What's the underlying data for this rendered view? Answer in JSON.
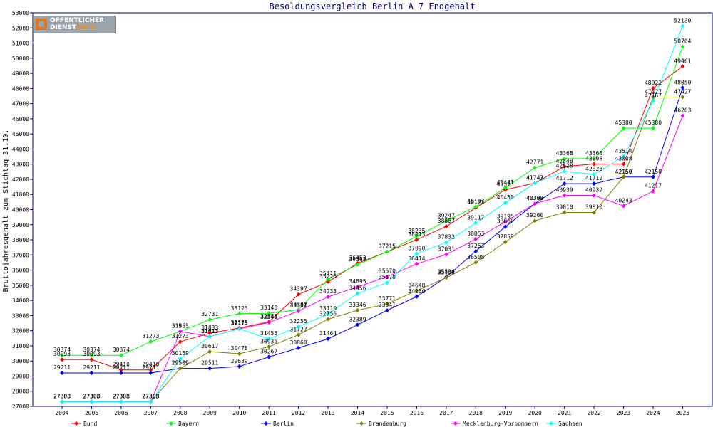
{
  "logo": {
    "line1": "OFFENTLICHER",
    "line2_main": "DIENST",
    "line2_accent": ".INFO"
  },
  "chart_data": {
    "type": "line",
    "title": "Besoldungsvergleich Berlin A 7 Endgehalt",
    "xlabel": "",
    "ylabel": "Bruttojahresgehalt zum Stichtag 31.10.",
    "categories": [
      "2004",
      "2005",
      "2006",
      "2007",
      "2008",
      "2009",
      "2010",
      "2011",
      "2012",
      "2013",
      "2014",
      "2015",
      "2016",
      "2017",
      "2018",
      "2019",
      "2020",
      "2021",
      "2022",
      "2023",
      "2024",
      "2025"
    ],
    "ylim": [
      27000,
      53000
    ],
    "ytick_step": 1000,
    "grid": false,
    "legend_position": "bottom",
    "series": [
      {
        "name": "Bund",
        "color": "#ff0000",
        "values": [
          30093,
          30093,
          29410,
          29410,
          31273,
          31833,
          32175,
          32585,
          34397,
          35226,
          36453,
          37215,
          38013,
          38887,
          40123,
          41313,
          41743,
          42848,
          43008,
          43008,
          48021,
          49461
        ]
      },
      {
        "name": "Bayern",
        "color": "#00ff00",
        "values": [
          30374,
          30374,
          30374,
          31273,
          31953,
          32731,
          33123,
          33148,
          33382,
          35411,
          36363,
          37215,
          38235,
          39247,
          40197,
          41441,
          42771,
          43368,
          43368,
          45380,
          45380,
          50764
        ]
      },
      {
        "name": "Berlin",
        "color": "#0000ff",
        "values": [
          29211,
          29211,
          29211,
          29211,
          29509,
          29511,
          29639,
          30267,
          30860,
          31464,
          32389,
          33341,
          34250,
          35536,
          37253,
          38860,
          40389,
          41712,
          41712,
          42150,
          42150,
          48050
        ]
      },
      {
        "name": "Brandenburg",
        "color": "#808000",
        "values": [
          27308,
          27308,
          27308,
          27308,
          29509,
          30617,
          30478,
          30935,
          31727,
          32756,
          33346,
          33771,
          34648,
          35498,
          36508,
          37859,
          39260,
          39810,
          39810,
          42150,
          47427,
          47427
        ]
      },
      {
        "name": "Mecklenburg-Vorpommern",
        "color": "#ff00ff",
        "values": [
          27303,
          27303,
          27303,
          27303,
          31953,
          31613,
          32115,
          32545,
          33301,
          34233,
          34895,
          35570,
          36414,
          37031,
          38053,
          39195,
          40393,
          40939,
          40939,
          40243,
          41217,
          46203
        ]
      },
      {
        "name": "Sachsen",
        "color": "#00ffff",
        "values": [
          27303,
          27303,
          27303,
          27303,
          30159,
          31613,
          32115,
          31455,
          32255,
          33110,
          34456,
          35170,
          37090,
          37832,
          39117,
          40450,
          41747,
          42528,
          42328,
          43514,
          47167,
          52130
        ]
      }
    ]
  }
}
